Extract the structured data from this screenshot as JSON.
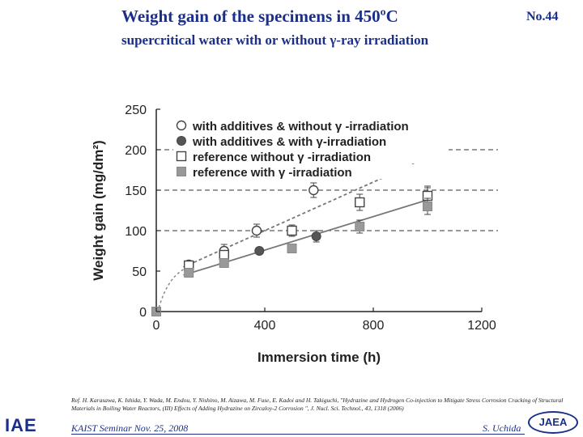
{
  "slide": {
    "title_line1": "Weight gain of the specimens in 450ºC",
    "title_line2": "supercritical water with or without γ-ray irradiation",
    "slide_number": "No.44"
  },
  "chart_data": {
    "type": "scatter",
    "xlabel": "Immersion time (h)",
    "ylabel": "Weight gain (mg/dm²)",
    "xlim": [
      0,
      1200
    ],
    "ylim": [
      0,
      250
    ],
    "x_ticks": [
      "0",
      "400",
      "800",
      "1200"
    ],
    "y_ticks": [
      "0",
      "50",
      "100",
      "150",
      "200",
      "250"
    ],
    "legend_position": "top",
    "series": [
      {
        "name": "with additives & without γ -irradiation",
        "marker": "open-circle",
        "x": [
          120,
          250,
          370,
          580
        ],
        "y": [
          58,
          75,
          100,
          150
        ],
        "err": [
          4,
          8,
          8,
          9
        ]
      },
      {
        "name": "with additives & with γ-irradiation",
        "marker": "filled-circle",
        "x": [
          250,
          380,
          590,
          1000
        ],
        "y": [
          65,
          75,
          93,
          143
        ],
        "err": [
          3,
          4,
          7,
          10
        ]
      },
      {
        "name": "reference without γ -irradiation",
        "marker": "open-square",
        "x": [
          120,
          250,
          500,
          750,
          1000
        ],
        "y": [
          57,
          70,
          100,
          135,
          143
        ],
        "err": [
          3,
          4,
          7,
          10,
          12
        ]
      },
      {
        "name": "reference with γ -irradiation",
        "marker": "filled-square",
        "x": [
          0,
          120,
          250,
          500,
          750,
          1000
        ],
        "y": [
          0,
          48,
          60,
          78,
          105,
          130
        ],
        "err": [
          0,
          3,
          3,
          4,
          8,
          10
        ]
      }
    ],
    "trend_lines": [
      {
        "style": "dashed",
        "x": [
          100,
          1000
        ],
        "y": [
          55,
          190
        ]
      },
      {
        "style": "solid",
        "x": [
          100,
          1000
        ],
        "y": [
          45,
          138
        ]
      }
    ],
    "reference_lines": [
      100,
      150,
      200
    ]
  },
  "colors": {
    "title": "#1b2f8a",
    "filled_marker": "#555555",
    "square_filled": "#999999",
    "axis": "#222222"
  },
  "footer": {
    "reference": "Ref. H. Karasawa, K. Ishida, Y. Wada, M. Endou, Y. Nishino, M. Aizawa, M. Fuse, E. Kadoi and H. Takiguchi, \"Hydrazine and Hydrogen Co-injection to Mitigate Stress Corrosion Cracking of Structural Materials in Boiling Water Reactors, (III) Effects of Adding Hydrazine on Zircaloy-2 Corrosion \", J. Nucl. Sci. Technol., 43, 1318 (2006)",
    "seminar": "KAIST Seminar  Nov. 25, 2008",
    "author": "S. Uchida",
    "logo_left_text": "IAE",
    "logo_right_text": "JAEA"
  }
}
